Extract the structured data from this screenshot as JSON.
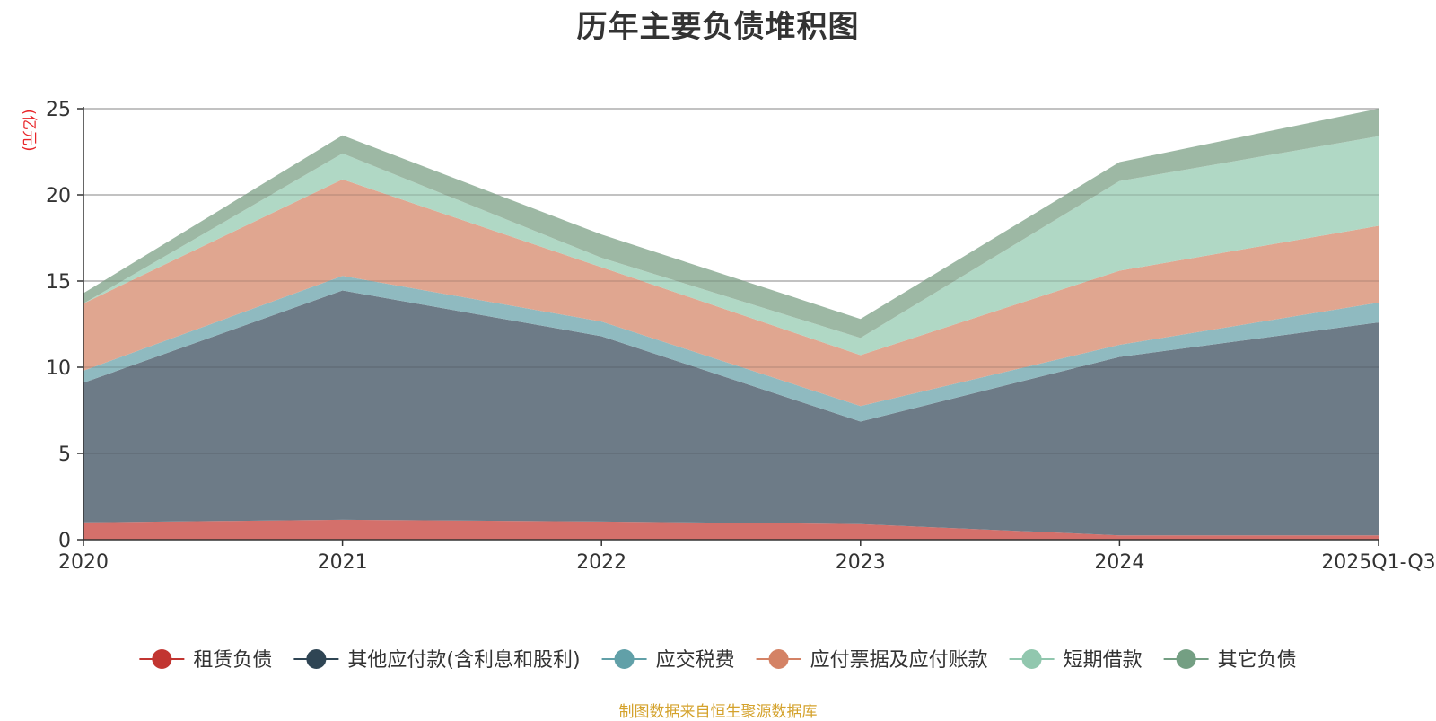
{
  "chart_data": {
    "type": "area",
    "stacked": true,
    "title": "历年主要负债堆积图",
    "unit_label": "(亿元)",
    "xlabel": "",
    "ylabel": "(亿元)",
    "categories": [
      "2020",
      "2021",
      "2022",
      "2023",
      "2024",
      "2025Q1-Q3"
    ],
    "ylim": [
      0,
      25
    ],
    "yticks": [
      0,
      5,
      10,
      15,
      20,
      25
    ],
    "grid": true,
    "legend_position": "bottom",
    "series": [
      {
        "name": "租赁负债",
        "color": "#c23531",
        "fill": "#d4706b",
        "values": [
          1.0,
          1.15,
          1.05,
          0.9,
          0.25,
          0.25
        ]
      },
      {
        "name": "其他应付款(含利息和股利)",
        "color": "#2f4554",
        "fill": "#6d7b87",
        "values": [
          8.1,
          13.3,
          10.75,
          5.95,
          10.35,
          12.35
        ]
      },
      {
        "name": "应交税费",
        "color": "#61a0a8",
        "fill": "#8fbac0",
        "values": [
          0.7,
          0.85,
          0.85,
          0.9,
          0.7,
          1.15
        ]
      },
      {
        "name": "应付票据及应付账款",
        "color": "#d48265",
        "fill": "#e0a690",
        "values": [
          3.9,
          5.6,
          3.15,
          2.95,
          4.3,
          4.45
        ]
      },
      {
        "name": "短期借款",
        "color": "#91c7ae",
        "fill": "#b0d8c5",
        "values": [
          0.0,
          1.5,
          0.55,
          1.0,
          5.2,
          5.2
        ]
      },
      {
        "name": "其它负债",
        "color": "#749f83",
        "fill": "#9db8a4",
        "values": [
          0.6,
          1.05,
          1.35,
          1.1,
          1.1,
          1.6
        ]
      }
    ]
  },
  "footer": "制图数据来自恒生聚源数据库"
}
